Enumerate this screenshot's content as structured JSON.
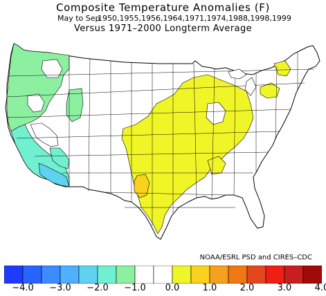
{
  "header": {
    "title": "Composite Temperature Anomalies (F)",
    "period_label": "May to Sep",
    "years": "1950,1955,1956,1964,1971,1974,1988,1998,1999",
    "baseline": "Versus 1971–2000 Longterm Average"
  },
  "credit": "NOAA/ESRL PSD and CIRES–CDC",
  "legend": {
    "colors": [
      "#1e3cff",
      "#2864ff",
      "#3c8cff",
      "#4fb0ff",
      "#5fd2f0",
      "#70f0d0",
      "#8cf0a0",
      "#ffffff",
      "#ffffff",
      "#f0f528",
      "#fad21e",
      "#f5a01e",
      "#f07814",
      "#e6461e",
      "#f01e14",
      "#c81e1e",
      "#a00a0a"
    ],
    "ticks": [
      "−4.0",
      "−3.0",
      "−2.0",
      "−1.0",
      "0.0",
      "1.0",
      "2.0",
      "3.0",
      "4.0"
    ]
  },
  "map": {
    "region": "Contiguous United States climate divisions",
    "colors": {
      "near_zero": "#ffffff",
      "cool_1": "#8cf0a0",
      "cool_2": "#70f0d0",
      "cool_3": "#5fd2f0",
      "warm_1": "#f0f528",
      "warm_2": "#fad21e"
    }
  }
}
